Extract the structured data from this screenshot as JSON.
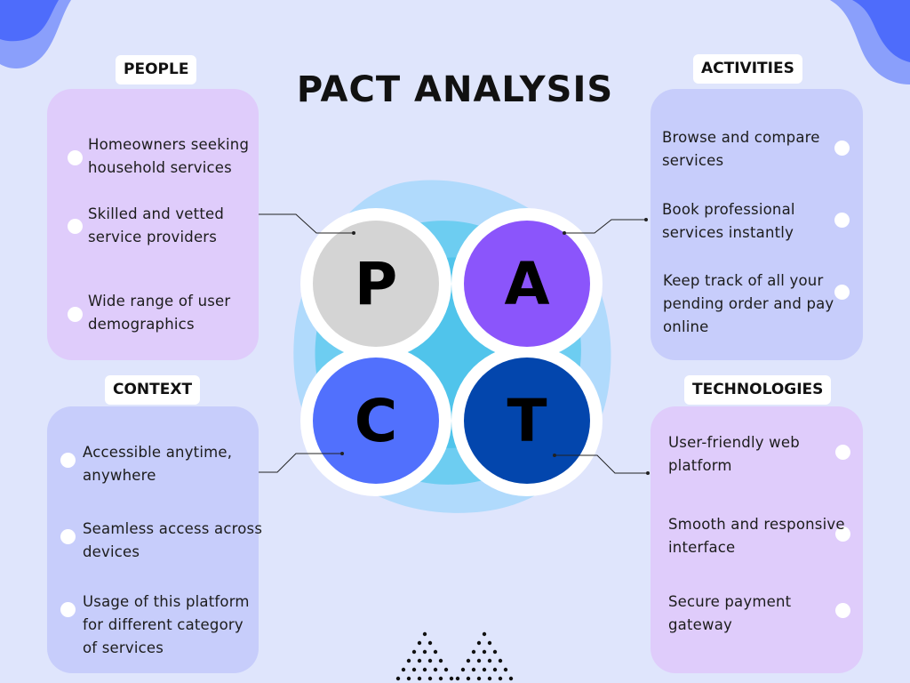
{
  "title": "PACT ANALYSIS",
  "colors": {
    "background": "#dfe5fc",
    "people_panel": "#dfccfb",
    "context_panel": "#c7cdfb",
    "p_circle": "#d4d4d4",
    "a_circle": "#8b55fb",
    "c_circle": "#5170fd",
    "t_circle": "#0346ad"
  },
  "letters": {
    "p": "P",
    "a": "A",
    "c": "C",
    "t": "T"
  },
  "people": {
    "label": "PEOPLE",
    "items": [
      [
        "Homeowners seeking",
        "household services"
      ],
      [
        "Skilled and vetted",
        "service providers"
      ],
      [
        "Wide range of user",
        "demographics"
      ]
    ]
  },
  "activities": {
    "label": "ACTIVITIES",
    "items": [
      [
        "Browse and compare",
        "services"
      ],
      [
        "Book professional",
        "services instantly"
      ],
      [
        "Keep track of all your",
        "pending order and pay",
        "online"
      ]
    ]
  },
  "context": {
    "label": "CONTEXT",
    "items": [
      [
        "Accessible anytime,",
        "anywhere"
      ],
      [
        "Seamless access across",
        "devices"
      ],
      [
        "Usage of this platform",
        "for different category",
        "of services"
      ]
    ]
  },
  "technologies": {
    "label": "TECHNOLOGIES",
    "items": [
      [
        "User-friendly web",
        "platform"
      ],
      [
        "Smooth and responsive",
        "interface"
      ],
      [
        "Secure payment",
        "gateway"
      ]
    ]
  }
}
